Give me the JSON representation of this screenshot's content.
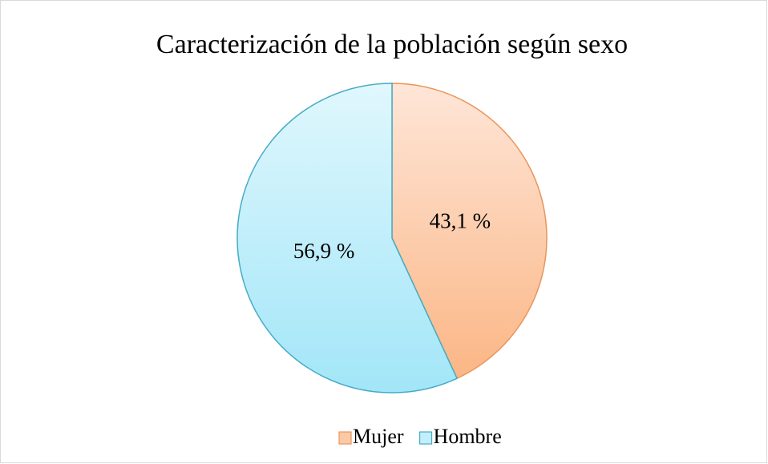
{
  "chart_data": {
    "type": "pie",
    "title": "Caracterización de la población según sexo",
    "categories": [
      "Mujer",
      "Hombre"
    ],
    "values": [
      43.1,
      56.9
    ],
    "value_labels": [
      "43,1 %",
      "56,9 %"
    ],
    "colors": [
      "#fbc9a6",
      "#c2effb"
    ],
    "legend": "bottom"
  }
}
